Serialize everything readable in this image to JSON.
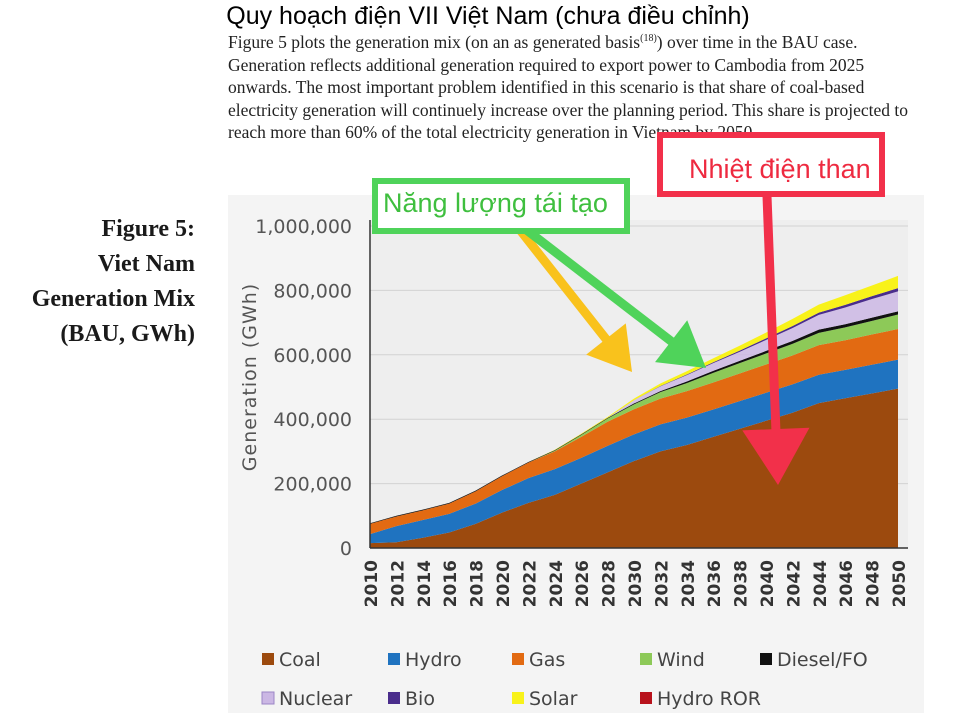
{
  "slide_title": "Quy hoạch điện VII Việt Nam (chưa điều chỉnh)",
  "excerpt": {
    "text_1": "Figure 5 plots the generation mix (on an as generated basis",
    "footnote": "(18)",
    "text_2": ") over time in the BAU case. Generation reflects additional generation required to export power to Cambodia from 2025 onwards. The most important problem identified in this scenario is that share of coal-based electricity generation will continuely increase over the planning period. This share is projected to reach more than 60% of the total electricity generation in Vietnam by 2050."
  },
  "figure_caption": {
    "line1": "Figure 5:",
    "line2": "Viet Nam",
    "line3": "Generation Mix",
    "line4": "(BAU, GWh)"
  },
  "callouts": {
    "renewable": "Năng lượng tái tạo",
    "coal": "Nhiệt điện than"
  },
  "annotation_colors": {
    "yellow_arrow": "#f9c21c",
    "green_arrow": "#4fd35a",
    "red_arrow": "#f2304a"
  },
  "chart_data": {
    "type": "area",
    "stacked": true,
    "ylabel": "Generation (GWh)",
    "xlabel": "",
    "ylim": [
      0,
      1000000
    ],
    "yticks": [
      0,
      200000,
      400000,
      600000,
      800000,
      1000000
    ],
    "ytick_labels": [
      "0",
      "200,000",
      "400,000",
      "600,000",
      "800,000",
      "1,000,000"
    ],
    "x": [
      2010,
      2012,
      2014,
      2016,
      2018,
      2020,
      2022,
      2024,
      2026,
      2028,
      2030,
      2032,
      2034,
      2036,
      2038,
      2040,
      2042,
      2044,
      2046,
      2048,
      2050
    ],
    "xtick_labels": [
      "2010",
      "2012",
      "2014",
      "2016",
      "2018",
      "2020",
      "2022",
      "2024",
      "2026",
      "2028",
      "2030",
      "2032",
      "2034",
      "2036",
      "2038",
      "2040",
      "2042",
      "2044",
      "2046",
      "2048",
      "2050"
    ],
    "legend_position": "bottom",
    "series": [
      {
        "name": "Coal",
        "color": "#9c4a0e",
        "values": [
          15000,
          18000,
          32000,
          48000,
          75000,
          110000,
          140000,
          165000,
          200000,
          235000,
          270000,
          300000,
          320000,
          345000,
          370000,
          395000,
          420000,
          450000,
          465000,
          480000,
          495000
        ]
      },
      {
        "name": "Hydro",
        "color": "#1f73c0",
        "values": [
          28000,
          50000,
          55000,
          58000,
          63000,
          70000,
          77000,
          80000,
          80000,
          82000,
          83000,
          84000,
          85000,
          85000,
          86000,
          87000,
          88000,
          88000,
          88000,
          89000,
          90000
        ]
      },
      {
        "name": "Gas",
        "color": "#e26a12",
        "values": [
          32000,
          30000,
          30000,
          32000,
          38000,
          43000,
          48000,
          55000,
          65000,
          75000,
          78000,
          80000,
          82000,
          84000,
          86000,
          88000,
          90000,
          92000,
          92000,
          94000,
          95000
        ]
      },
      {
        "name": "Wind",
        "color": "#8dc958",
        "values": [
          0,
          0,
          0,
          0,
          0,
          0,
          0,
          2000,
          6000,
          10000,
          15000,
          20000,
          25000,
          30000,
          32000,
          34000,
          36000,
          38000,
          40000,
          42000,
          45000
        ]
      },
      {
        "name": "Diesel/FO",
        "color": "#111111",
        "values": [
          2000,
          2000,
          2000,
          2000,
          2000,
          2000,
          2000,
          2000,
          2000,
          2000,
          3000,
          3000,
          5000,
          6000,
          7000,
          8000,
          9000,
          10000,
          10000,
          10000,
          10000
        ]
      },
      {
        "name": "Nuclear",
        "color": "#cbb7e4",
        "values": [
          0,
          0,
          0,
          0,
          0,
          0,
          0,
          0,
          0,
          0,
          10000,
          15000,
          20000,
          24000,
          28000,
          34000,
          40000,
          46000,
          52000,
          58000,
          62000
        ]
      },
      {
        "name": "Bio",
        "color": "#4a2d8c",
        "values": [
          0,
          0,
          0,
          0,
          0,
          0,
          0,
          0,
          0,
          0,
          0,
          1000,
          2000,
          3000,
          4000,
          5000,
          6000,
          7000,
          8000,
          9000,
          10000
        ]
      },
      {
        "name": "Solar",
        "color": "#f8f21a",
        "values": [
          0,
          0,
          0,
          0,
          0,
          0,
          0,
          1000,
          2000,
          3000,
          5000,
          8000,
          10000,
          12000,
          15000,
          18000,
          22000,
          25000,
          30000,
          33000,
          38000
        ]
      },
      {
        "name": "Hydro ROR",
        "color": "#b8121c",
        "values": [
          0,
          0,
          0,
          0,
          0,
          0,
          0,
          0,
          0,
          0,
          0,
          0,
          0,
          0,
          0,
          0,
          0,
          0,
          0,
          0,
          0
        ]
      }
    ]
  }
}
